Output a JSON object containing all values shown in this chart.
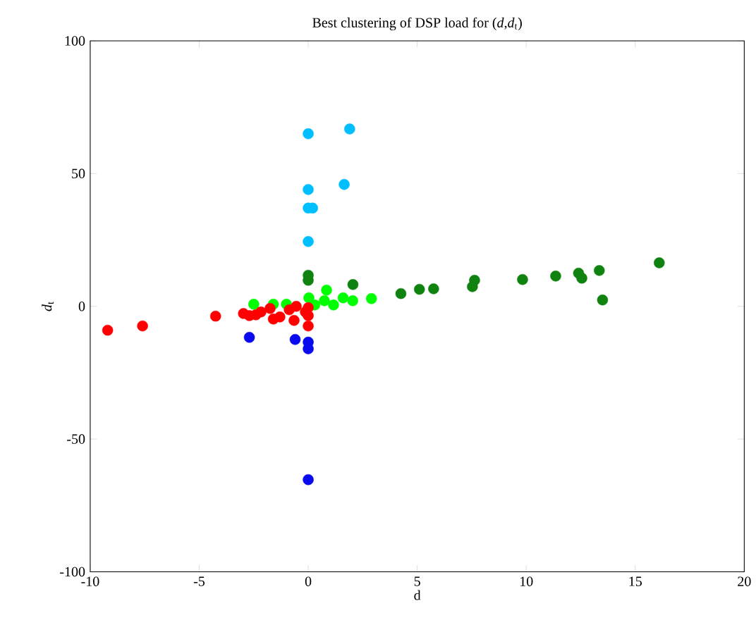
{
  "chart_data": {
    "type": "scatter",
    "title": "Best clustering of DSP load for (*d*,*d*$_{t}$)",
    "xlabel": "d",
    "ylabel": "*d*$_{t}$",
    "xlim": [
      -10,
      20
    ],
    "ylim": [
      -100,
      100
    ],
    "xticks": [
      -10,
      -5,
      0,
      5,
      10,
      15,
      20
    ],
    "yticks": [
      -100,
      -50,
      0,
      50,
      100
    ],
    "marker": "circle",
    "grid": false,
    "series": [
      {
        "color": "#00bfff",
        "x": [
          0,
          1.9,
          0,
          1.65,
          0,
          0.2,
          0
        ],
        "values": [
          65,
          66.8,
          44,
          45.9,
          37,
          37,
          24.4
        ]
      },
      {
        "color": "#0f820f",
        "x": [
          0,
          0,
          2.05,
          4.25,
          5.1,
          5.75,
          7.63,
          7.53,
          9.83,
          11.35,
          12.4,
          12.55,
          13.35,
          13.5,
          16.1
        ],
        "values": [
          11.7,
          9.8,
          8.2,
          4.8,
          6.4,
          6.6,
          9.8,
          7.4,
          10.1,
          11.4,
          12.5,
          10.6,
          13.5,
          2.4,
          16.4
        ]
      },
      {
        "color": "#00ff00",
        "x": [
          -2.5,
          -1.6,
          -1.0,
          0.03,
          0.84,
          1.16,
          1.6,
          2.04,
          2.9,
          0.3,
          0.74
        ],
        "values": [
          0.8,
          0.8,
          0.8,
          3.2,
          6.1,
          0.5,
          3.2,
          2.1,
          2.9,
          0.5,
          2.1
        ]
      },
      {
        "color": "#ff0000",
        "x": [
          -9.2,
          -7.6,
          -4.25,
          -2.97,
          -2.7,
          -2.17,
          -1.6,
          -1.75,
          -0.65,
          -0.55,
          0,
          0,
          0,
          -0.13,
          -1.3,
          -2.4,
          -0.87
        ],
        "values": [
          -9,
          -7.4,
          -3.7,
          -2.7,
          -3.5,
          -2.1,
          -4.8,
          -0.8,
          -5.3,
          0,
          -0.5,
          -3.5,
          -7.4,
          -2.1,
          -4,
          -3.2,
          -1.3
        ]
      },
      {
        "color": "#0a0aee",
        "x": [
          -2.7,
          -0.6,
          0,
          0,
          0
        ],
        "values": [
          -11.7,
          -12.5,
          -13.5,
          -16,
          -65.3
        ]
      }
    ]
  }
}
